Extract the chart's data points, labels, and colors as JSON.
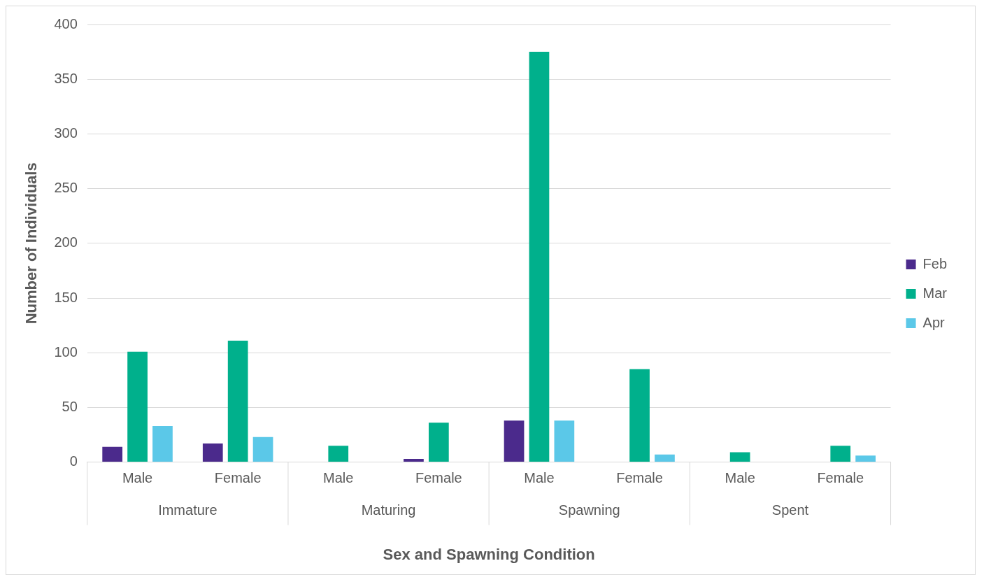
{
  "chart_data": {
    "type": "bar",
    "xlabel": "Sex and Spawning Condition",
    "ylabel": "Number of Individuals",
    "categories": [
      "Male",
      "Female",
      "Male",
      "Female",
      "Male",
      "Female",
      "Male",
      "Female"
    ],
    "annotations": [
      "Immature",
      "Maturing",
      "Spawning",
      "Spent"
    ],
    "series": [
      {
        "name": "Feb",
        "color": "#4b2a8c",
        "values": [
          14,
          17,
          0,
          3,
          38,
          0,
          0,
          0
        ]
      },
      {
        "name": "Mar",
        "color": "#00b08c",
        "values": [
          101,
          111,
          15,
          36,
          375,
          85,
          9,
          15
        ]
      },
      {
        "name": "Apr",
        "color": "#5bc8e8",
        "values": [
          33,
          23,
          0,
          0,
          38,
          7,
          0,
          6
        ]
      }
    ],
    "ylim": [
      0,
      400
    ],
    "yticks": [
      0,
      50,
      100,
      150,
      200,
      250,
      300,
      350,
      400
    ],
    "grid": "y",
    "legend": "right"
  }
}
